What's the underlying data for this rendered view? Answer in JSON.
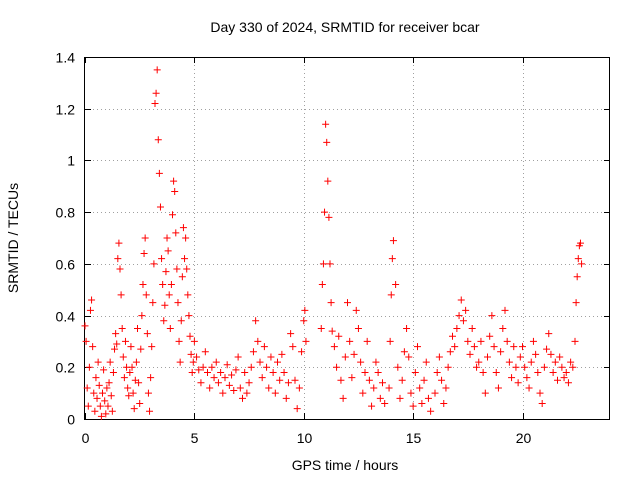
{
  "chart_data": {
    "type": "scatter",
    "title": "Day 330 of 2024, SRMTID for receiver bcar",
    "xlabel": "GPS time / hours",
    "ylabel": "SRMTID / TECUs",
    "xlim": [
      0,
      24
    ],
    "ylim": [
      0,
      1.4
    ],
    "xticks": [
      0,
      5,
      10,
      15,
      20
    ],
    "xtick_labels": [
      "0",
      "5",
      "10",
      "15",
      "20"
    ],
    "yticks": [
      0,
      0.2,
      0.4,
      0.6,
      0.8,
      1.0,
      1.2,
      1.4
    ],
    "ytick_labels": [
      "0",
      "0.2",
      "0.4",
      "0.6",
      "0.8",
      "1",
      "1.2",
      "1.4"
    ],
    "grid": true,
    "marker": "+",
    "series": [
      {
        "name": "SRMTID",
        "color": "#ff0000",
        "x": [
          0.0,
          0.05,
          0.1,
          0.15,
          0.2,
          0.25,
          0.3,
          0.35,
          0.4,
          0.45,
          0.5,
          0.55,
          0.6,
          0.65,
          0.7,
          0.75,
          0.8,
          0.85,
          0.9,
          0.95,
          1.0,
          1.05,
          1.1,
          1.15,
          1.2,
          1.25,
          1.3,
          1.35,
          1.4,
          1.45,
          1.5,
          1.55,
          1.6,
          1.65,
          1.7,
          1.75,
          1.8,
          1.85,
          1.9,
          1.95,
          2.0,
          2.05,
          2.1,
          2.15,
          2.2,
          2.25,
          2.3,
          2.35,
          2.4,
          2.45,
          2.5,
          2.55,
          2.6,
          2.65,
          2.7,
          2.75,
          2.8,
          2.85,
          2.9,
          2.95,
          3.0,
          3.05,
          3.1,
          3.15,
          3.2,
          3.25,
          3.3,
          3.35,
          3.4,
          3.45,
          3.5,
          3.55,
          3.6,
          3.65,
          3.7,
          3.75,
          3.8,
          3.85,
          3.9,
          3.95,
          4.0,
          4.05,
          4.1,
          4.15,
          4.2,
          4.25,
          4.3,
          4.35,
          4.4,
          4.45,
          4.5,
          4.55,
          4.6,
          4.65,
          4.7,
          4.75,
          4.8,
          4.85,
          4.9,
          4.95,
          5.0,
          5.1,
          5.2,
          5.3,
          5.4,
          5.5,
          5.6,
          5.7,
          5.8,
          5.9,
          6.0,
          6.1,
          6.2,
          6.3,
          6.4,
          6.5,
          6.6,
          6.7,
          6.8,
          6.9,
          7.0,
          7.1,
          7.2,
          7.3,
          7.4,
          7.5,
          7.6,
          7.7,
          7.8,
          7.9,
          8.0,
          8.1,
          8.2,
          8.3,
          8.4,
          8.5,
          8.6,
          8.7,
          8.8,
          8.9,
          9.0,
          9.1,
          9.2,
          9.3,
          9.4,
          9.5,
          9.6,
          9.7,
          9.8,
          9.9,
          10.0,
          10.05,
          10.1,
          10.8,
          10.85,
          10.9,
          10.95,
          11.0,
          11.05,
          11.1,
          11.15,
          11.2,
          11.25,
          11.3,
          11.4,
          11.5,
          11.6,
          11.7,
          11.8,
          11.9,
          12.0,
          12.1,
          12.2,
          12.3,
          12.4,
          12.5,
          12.6,
          12.7,
          12.8,
          12.9,
          13.0,
          13.1,
          13.2,
          13.3,
          13.4,
          13.5,
          13.6,
          13.7,
          13.9,
          13.95,
          14.0,
          14.05,
          14.1,
          14.2,
          14.3,
          14.4,
          14.5,
          14.6,
          14.7,
          14.8,
          14.9,
          15.0,
          15.1,
          15.2,
          15.3,
          15.4,
          15.5,
          15.6,
          15.7,
          15.8,
          16.0,
          16.1,
          16.2,
          16.3,
          16.4,
          16.5,
          16.6,
          16.7,
          16.8,
          16.9,
          17.0,
          17.1,
          17.2,
          17.3,
          17.4,
          17.5,
          17.6,
          17.7,
          17.8,
          17.9,
          18.0,
          18.1,
          18.2,
          18.3,
          18.4,
          18.5,
          18.6,
          18.7,
          18.8,
          18.9,
          19.0,
          19.1,
          19.2,
          19.3,
          19.4,
          19.5,
          19.6,
          19.7,
          19.8,
          19.9,
          20.0,
          20.1,
          20.2,
          20.3,
          20.4,
          20.5,
          20.6,
          20.7,
          20.8,
          20.9,
          21.0,
          21.1,
          21.2,
          21.3,
          21.4,
          21.5,
          21.6,
          21.7,
          21.8,
          21.9,
          22.0,
          22.1,
          22.2,
          22.3,
          22.4,
          22.45,
          22.5,
          22.55,
          22.6,
          22.65,
          22.7
        ],
        "y": [
          0.36,
          0.3,
          0.12,
          0.05,
          0.2,
          0.42,
          0.46,
          0.28,
          0.1,
          0.03,
          0.16,
          0.08,
          0.22,
          0.13,
          0.05,
          0.01,
          0.1,
          0.19,
          0.07,
          0.02,
          0.12,
          0.05,
          0.14,
          0.22,
          0.09,
          0.03,
          0.18,
          0.27,
          0.33,
          0.29,
          0.62,
          0.68,
          0.58,
          0.48,
          0.35,
          0.24,
          0.16,
          0.3,
          0.2,
          0.12,
          0.09,
          0.18,
          0.28,
          0.2,
          0.1,
          0.04,
          0.15,
          0.22,
          0.35,
          0.14,
          0.06,
          0.27,
          0.4,
          0.52,
          0.64,
          0.7,
          0.48,
          0.33,
          0.1,
          0.03,
          0.16,
          0.28,
          0.45,
          0.6,
          1.22,
          1.26,
          1.35,
          1.08,
          0.95,
          0.82,
          0.62,
          0.52,
          0.38,
          0.44,
          0.57,
          0.7,
          0.65,
          0.48,
          0.35,
          0.52,
          0.79,
          0.92,
          0.88,
          0.72,
          0.58,
          0.45,
          0.3,
          0.22,
          0.38,
          0.55,
          0.74,
          0.62,
          0.7,
          0.58,
          0.48,
          0.4,
          0.32,
          0.25,
          0.18,
          0.22,
          0.3,
          0.24,
          0.19,
          0.14,
          0.2,
          0.26,
          0.18,
          0.12,
          0.2,
          0.16,
          0.22,
          0.14,
          0.18,
          0.1,
          0.16,
          0.21,
          0.13,
          0.17,
          0.11,
          0.19,
          0.24,
          0.12,
          0.08,
          0.18,
          0.1,
          0.14,
          0.2,
          0.26,
          0.38,
          0.3,
          0.22,
          0.16,
          0.28,
          0.2,
          0.12,
          0.24,
          0.18,
          0.1,
          0.22,
          0.15,
          0.25,
          0.18,
          0.08,
          0.14,
          0.33,
          0.28,
          0.15,
          0.04,
          0.12,
          0.26,
          0.38,
          0.42,
          0.3,
          0.35,
          0.52,
          0.6,
          0.8,
          1.14,
          1.07,
          0.92,
          0.78,
          0.6,
          0.45,
          0.34,
          0.28,
          0.2,
          0.32,
          0.15,
          0.08,
          0.24,
          0.45,
          0.3,
          0.16,
          0.25,
          0.42,
          0.35,
          0.22,
          0.1,
          0.18,
          0.3,
          0.15,
          0.05,
          0.12,
          0.22,
          0.18,
          0.08,
          0.14,
          0.06,
          0.12,
          0.3,
          0.48,
          0.62,
          0.69,
          0.52,
          0.2,
          0.08,
          0.15,
          0.26,
          0.35,
          0.24,
          0.1,
          0.05,
          0.18,
          0.28,
          0.12,
          0.06,
          0.15,
          0.22,
          0.08,
          0.03,
          0.1,
          0.18,
          0.24,
          0.15,
          0.06,
          0.12,
          0.2,
          0.26,
          0.32,
          0.28,
          0.35,
          0.4,
          0.46,
          0.38,
          0.42,
          0.3,
          0.25,
          0.35,
          0.28,
          0.2,
          0.22,
          0.3,
          0.18,
          0.1,
          0.24,
          0.32,
          0.4,
          0.28,
          0.18,
          0.12,
          0.26,
          0.35,
          0.42,
          0.3,
          0.22,
          0.16,
          0.28,
          0.2,
          0.14,
          0.24,
          0.28,
          0.2,
          0.16,
          0.12,
          0.22,
          0.3,
          0.25,
          0.18,
          0.1,
          0.06,
          0.2,
          0.27,
          0.33,
          0.25,
          0.18,
          0.22,
          0.15,
          0.24,
          0.2,
          0.16,
          0.18,
          0.14,
          0.22,
          0.2,
          0.3,
          0.45,
          0.55,
          0.62,
          0.67,
          0.68,
          0.6
        ]
      }
    ]
  }
}
